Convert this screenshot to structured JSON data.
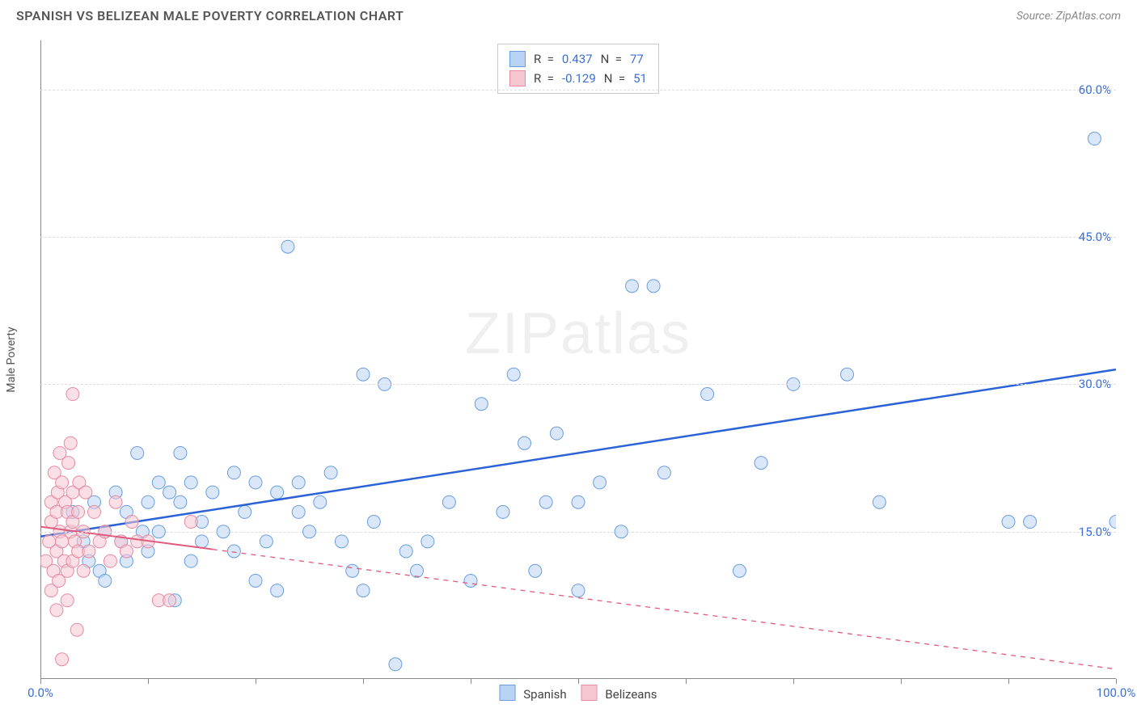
{
  "header": {
    "title": "SPANISH VS BELIZEAN MALE POVERTY CORRELATION CHART",
    "source_label": "Source: ZipAtlas.com"
  },
  "watermark": {
    "text_a": "ZIP",
    "text_b": "atlas"
  },
  "chart": {
    "type": "scatter",
    "background_color": "#ffffff",
    "grid_color": "#dddddd",
    "axis_color": "#888888",
    "ylabel": "Male Poverty",
    "ylabel_fontsize": 14,
    "xlim": [
      0,
      100
    ],
    "ylim": [
      0,
      65
    ],
    "x_ticks": [
      0,
      10,
      20,
      30,
      40,
      50,
      60,
      70,
      80,
      90,
      100
    ],
    "x_tick_labels": {
      "0": "0.0%",
      "100": "100.0%"
    },
    "y_gridlines": [
      15,
      30,
      45,
      60
    ],
    "y_tick_labels": {
      "15": "15.0%",
      "30": "30.0%",
      "45": "45.0%",
      "60": "60.0%"
    },
    "tick_label_color": "#3b6fd6",
    "tick_label_fontsize": 15,
    "marker_radius": 8,
    "marker_opacity": 0.55,
    "series": [
      {
        "name": "Spanish",
        "fill_color": "#b9d3f4",
        "stroke_color": "#6a9de0",
        "R": "0.437",
        "N": "77",
        "trend": {
          "solid": {
            "x1": 0,
            "y1": 14.5,
            "x2": 100,
            "y2": 31.5
          },
          "color": "#2b63d6",
          "width": 2.5
        },
        "points": [
          [
            3,
            17
          ],
          [
            4,
            14
          ],
          [
            4.5,
            12
          ],
          [
            5,
            18
          ],
          [
            5.5,
            11
          ],
          [
            6,
            15
          ],
          [
            6,
            10
          ],
          [
            7,
            19
          ],
          [
            7.5,
            14
          ],
          [
            8,
            12
          ],
          [
            8,
            17
          ],
          [
            9,
            23
          ],
          [
            9.5,
            15
          ],
          [
            10,
            18
          ],
          [
            10,
            13
          ],
          [
            11,
            20
          ],
          [
            11,
            15
          ],
          [
            12,
            19
          ],
          [
            12.5,
            8
          ],
          [
            13,
            23
          ],
          [
            13,
            18
          ],
          [
            14,
            20
          ],
          [
            14,
            12
          ],
          [
            15,
            16
          ],
          [
            15,
            14
          ],
          [
            16,
            19
          ],
          [
            17,
            15
          ],
          [
            18,
            21
          ],
          [
            18,
            13
          ],
          [
            19,
            17
          ],
          [
            20,
            20
          ],
          [
            20,
            10
          ],
          [
            21,
            14
          ],
          [
            22,
            19
          ],
          [
            22,
            9
          ],
          [
            23,
            44
          ],
          [
            24,
            17
          ],
          [
            24,
            20
          ],
          [
            25,
            15
          ],
          [
            26,
            18
          ],
          [
            27,
            21
          ],
          [
            28,
            14
          ],
          [
            29,
            11
          ],
          [
            30,
            9
          ],
          [
            30,
            31
          ],
          [
            31,
            16
          ],
          [
            32,
            30
          ],
          [
            33,
            1.5
          ],
          [
            34,
            13
          ],
          [
            35,
            11
          ],
          [
            36,
            14
          ],
          [
            38,
            18
          ],
          [
            40,
            10
          ],
          [
            41,
            28
          ],
          [
            43,
            17
          ],
          [
            44,
            31
          ],
          [
            45,
            24
          ],
          [
            46,
            11
          ],
          [
            47,
            18
          ],
          [
            48,
            25
          ],
          [
            50,
            18
          ],
          [
            50,
            9
          ],
          [
            52,
            20
          ],
          [
            54,
            15
          ],
          [
            55,
            40
          ],
          [
            57,
            40
          ],
          [
            58,
            21
          ],
          [
            62,
            29
          ],
          [
            65,
            11
          ],
          [
            67,
            22
          ],
          [
            70,
            30
          ],
          [
            75,
            31
          ],
          [
            78,
            18
          ],
          [
            90,
            16
          ],
          [
            92,
            16
          ],
          [
            98,
            55
          ],
          [
            100,
            16
          ]
        ]
      },
      {
        "name": "Belizeans",
        "fill_color": "#f6c7d1",
        "stroke_color": "#e68ba2",
        "R": "-0.129",
        "N": "51",
        "trend": {
          "solid": {
            "x1": 0,
            "y1": 15.5,
            "x2": 16,
            "y2": 13.2
          },
          "dashed": {
            "x1": 16,
            "y1": 13.2,
            "x2": 100,
            "y2": 1
          },
          "color": "#e05a7d",
          "width": 2
        },
        "points": [
          [
            0.5,
            12
          ],
          [
            0.8,
            14
          ],
          [
            1,
            9
          ],
          [
            1,
            16
          ],
          [
            1,
            18
          ],
          [
            1.2,
            11
          ],
          [
            1.3,
            21
          ],
          [
            1.5,
            7
          ],
          [
            1.5,
            13
          ],
          [
            1.5,
            17
          ],
          [
            1.6,
            19
          ],
          [
            1.7,
            10
          ],
          [
            1.8,
            15
          ],
          [
            1.8,
            23
          ],
          [
            2,
            2
          ],
          [
            2,
            14
          ],
          [
            2,
            20
          ],
          [
            2.2,
            12
          ],
          [
            2.3,
            18
          ],
          [
            2.5,
            8
          ],
          [
            2.5,
            11
          ],
          [
            2.5,
            17
          ],
          [
            2.6,
            22
          ],
          [
            2.8,
            15
          ],
          [
            2.8,
            24
          ],
          [
            3,
            12
          ],
          [
            3,
            16
          ],
          [
            3,
            19
          ],
          [
            3,
            29
          ],
          [
            3.2,
            14
          ],
          [
            3.4,
            5
          ],
          [
            3.5,
            17
          ],
          [
            3.5,
            13
          ],
          [
            3.6,
            20
          ],
          [
            4,
            11
          ],
          [
            4,
            15
          ],
          [
            4.2,
            19
          ],
          [
            4.5,
            13
          ],
          [
            5,
            17
          ],
          [
            5.5,
            14
          ],
          [
            6,
            15
          ],
          [
            6.5,
            12
          ],
          [
            7,
            18
          ],
          [
            7.5,
            14
          ],
          [
            8,
            13
          ],
          [
            8.5,
            16
          ],
          [
            9,
            14
          ],
          [
            10,
            14
          ],
          [
            11,
            8
          ],
          [
            12,
            8
          ],
          [
            14,
            16
          ]
        ]
      }
    ],
    "legend_stats": {
      "r_label": "R  =",
      "n_label": "N  ="
    },
    "legend_series": {
      "position": "bottom-center"
    }
  }
}
